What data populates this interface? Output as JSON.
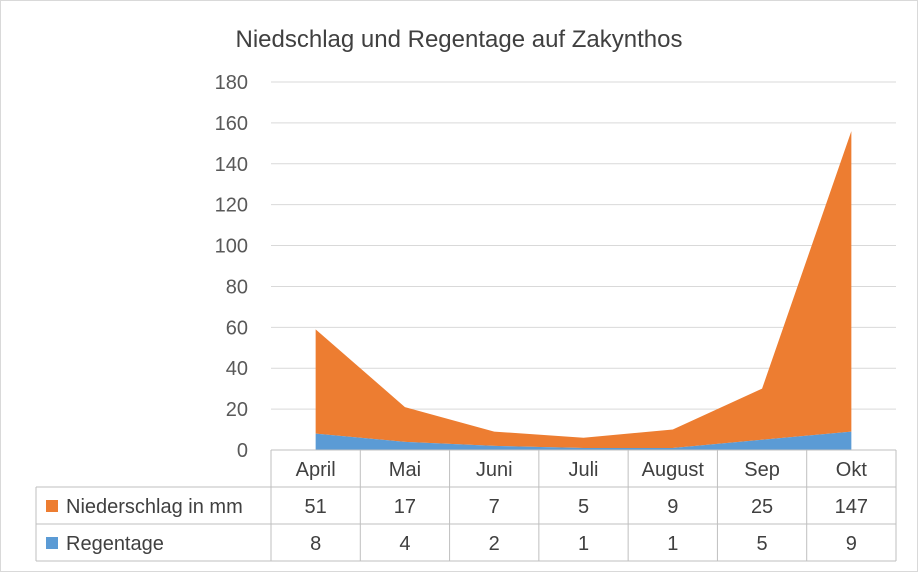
{
  "chart_data": {
    "type": "area",
    "title": "Niedschlag und Regentage auf Zakynthos",
    "categories": [
      "April",
      "Mai",
      "Juni",
      "Juli",
      "August",
      "Sep",
      "Okt"
    ],
    "series": [
      {
        "name": "Niederschlag in mm",
        "values": [
          51,
          17,
          7,
          5,
          9,
          25,
          147
        ],
        "color": "#ED7D31"
      },
      {
        "name": "Regentage",
        "values": [
          8,
          4,
          2,
          1,
          1,
          5,
          9
        ],
        "color": "#5B9BD5"
      }
    ],
    "stacked": true,
    "ylim": [
      0,
      180
    ],
    "yticks": [
      0,
      20,
      40,
      60,
      80,
      100,
      120,
      140,
      160,
      180
    ],
    "grid": true,
    "legend": "data-table"
  }
}
